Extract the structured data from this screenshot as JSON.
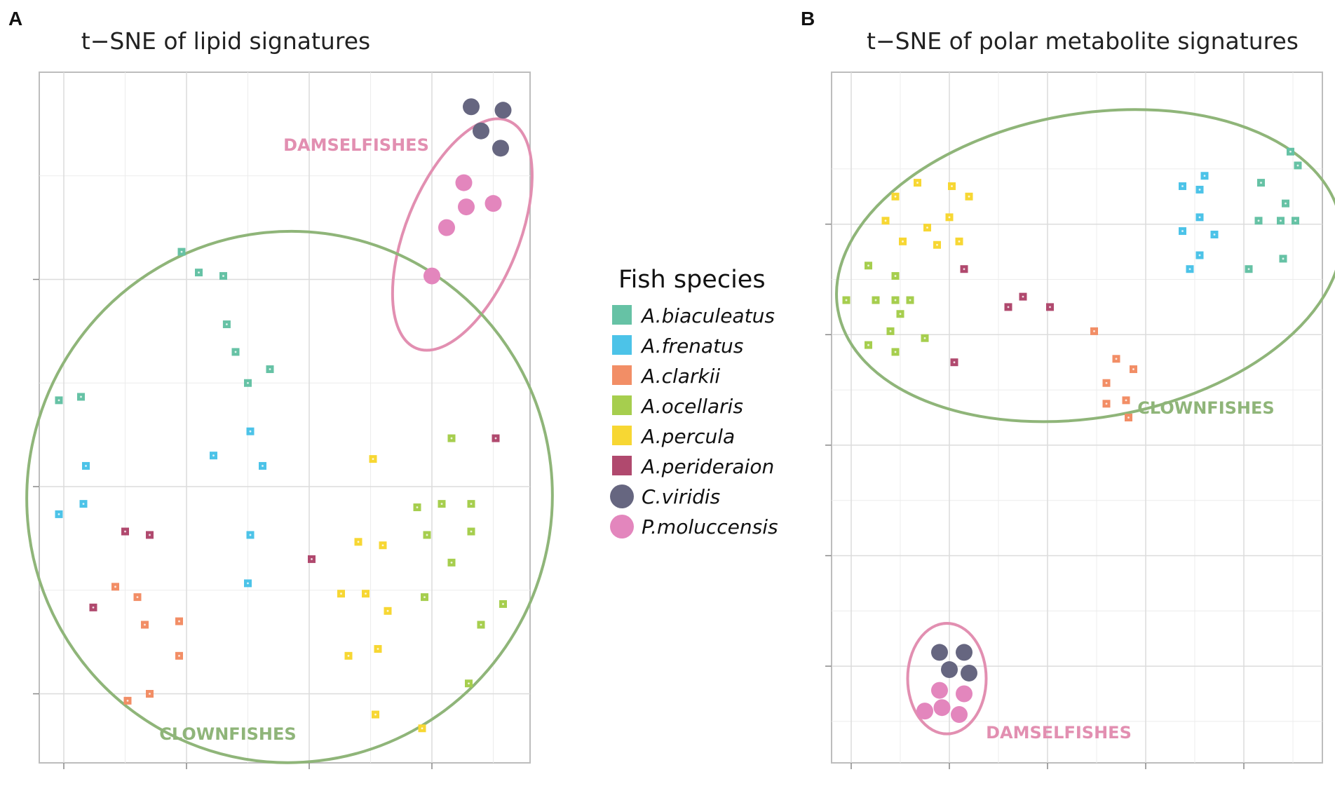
{
  "colors": {
    "A.biaculeatus": "#66C2A5",
    "A.frenatus": "#4CC3E8",
    "A.clarkii": "#F28E66",
    "A.ocellaris": "#A6CE4E",
    "A.percula": "#F7D733",
    "A.perideraion": "#B0496E",
    "C.viridis": "#666680",
    "P.moluccensis": "#E386BD",
    "clownfish_group": "#8FB579",
    "damselfish_group": "#E28FB1"
  },
  "legend": {
    "title": "Fish species",
    "items": [
      {
        "label": "A.biaculeatus",
        "shape": "square"
      },
      {
        "label": "A.frenatus",
        "shape": "square"
      },
      {
        "label": "A.clarkii",
        "shape": "square"
      },
      {
        "label": "A.ocellaris",
        "shape": "square"
      },
      {
        "label": "A.percula",
        "shape": "square"
      },
      {
        "label": "A.perideraion",
        "shape": "square"
      },
      {
        "label": "C.viridis",
        "shape": "circle"
      },
      {
        "label": "P.moluccensis",
        "shape": "circle"
      }
    ]
  },
  "chart_data": [
    {
      "type": "scatter",
      "panel": "A",
      "title": "t−SNE of lipid signatures",
      "xlim": [
        0,
        100
      ],
      "ylim": [
        0,
        100
      ],
      "xticks": [
        5,
        30,
        55,
        80
      ],
      "yticks": [
        10,
        40,
        70
      ],
      "grid": true,
      "groups": [
        {
          "label": "DAMSELFISHES",
          "color_key": "damselfish_group",
          "center": [
            86.2,
            76.5
          ],
          "rx": 25,
          "ry": 8.2,
          "angle": -68
        },
        {
          "label": "CLOWNFISHES",
          "color_key": "clownfish_group",
          "center": [
            51,
            38.5
          ],
          "rx": 53.5,
          "ry": 38.5,
          "angle": 15
        }
      ],
      "series": [
        {
          "name": "A.biaculeatus",
          "points": [
            [
              29,
              74
            ],
            [
              32.5,
              71
            ],
            [
              37.5,
              70.5
            ],
            [
              38.2,
              63.5
            ],
            [
              40,
              59.5
            ],
            [
              47,
              57
            ],
            [
              42.5,
              55
            ],
            [
              4,
              52.5
            ],
            [
              8.5,
              53
            ]
          ]
        },
        {
          "name": "A.frenatus",
          "points": [
            [
              9.5,
              43
            ],
            [
              35.5,
              44.5
            ],
            [
              45.5,
              43
            ],
            [
              43,
              48
            ],
            [
              4,
              36
            ],
            [
              9,
              37.5
            ],
            [
              43,
              33
            ],
            [
              42.5,
              26
            ]
          ]
        },
        {
          "name": "A.clarkii",
          "points": [
            [
              15.5,
              25.5
            ],
            [
              20,
              24
            ],
            [
              21.5,
              20
            ],
            [
              28.5,
              20.5
            ],
            [
              28.5,
              15.5
            ],
            [
              18,
              9
            ],
            [
              22.5,
              10
            ]
          ]
        },
        {
          "name": "A.ocellaris",
          "points": [
            [
              84,
              47
            ],
            [
              77,
              37
            ],
            [
              82,
              37.5
            ],
            [
              88,
              37.5
            ],
            [
              79,
              33
            ],
            [
              88,
              33.5
            ],
            [
              84,
              29
            ],
            [
              78.5,
              24
            ],
            [
              94.5,
              23
            ],
            [
              90,
              20
            ],
            [
              87.5,
              11.5
            ]
          ]
        },
        {
          "name": "A.percula",
          "points": [
            [
              68,
              44
            ],
            [
              65,
              32
            ],
            [
              70,
              31.5
            ],
            [
              61.5,
              24.5
            ],
            [
              66.5,
              24.5
            ],
            [
              71,
              22
            ],
            [
              63,
              15.5
            ],
            [
              69,
              16.5
            ],
            [
              68.5,
              7
            ],
            [
              78,
              5
            ]
          ]
        },
        {
          "name": "A.perideraion",
          "points": [
            [
              17.5,
              33.5
            ],
            [
              22.5,
              33
            ],
            [
              55.5,
              29.5
            ],
            [
              11,
              22.5
            ],
            [
              93,
              47
            ]
          ]
        },
        {
          "name": "C.viridis",
          "points": [
            [
              88,
              95
            ],
            [
              94.5,
              94.5
            ],
            [
              90,
              91.5
            ],
            [
              94,
              89
            ]
          ]
        },
        {
          "name": "P.moluccensis",
          "points": [
            [
              86.5,
              84
            ],
            [
              87,
              80.5
            ],
            [
              92.5,
              81
            ],
            [
              83,
              77.5
            ],
            [
              80,
              70.5
            ]
          ]
        }
      ]
    },
    {
      "type": "scatter",
      "panel": "B",
      "title": "t−SNE of polar metabolite signatures",
      "xlim": [
        0,
        100
      ],
      "ylim": [
        0,
        100
      ],
      "xticks": [
        4,
        24,
        44,
        64,
        84
      ],
      "yticks": [
        14,
        30,
        46,
        62,
        78
      ],
      "grid": true,
      "groups": [
        {
          "label": "CLOWNFISHES",
          "color_key": "clownfish_group",
          "center": [
            52.5,
            72
          ],
          "rx": 52,
          "ry": 22,
          "angle": -10
        },
        {
          "label": "DAMSELFISHES",
          "color_key": "damselfish_group",
          "center": [
            23.5,
            12.2
          ],
          "rx": 8,
          "ry": 8,
          "angle": 0
        }
      ],
      "series": [
        {
          "name": "A.biaculeatus",
          "points": [
            [
              93.5,
              88.5
            ],
            [
              95,
              86.5
            ],
            [
              87.5,
              84
            ],
            [
              92.5,
              81
            ],
            [
              87,
              78.5
            ],
            [
              91.5,
              78.5
            ],
            [
              94.5,
              78.5
            ],
            [
              92,
              73
            ],
            [
              85,
              71.5
            ]
          ]
        },
        {
          "name": "A.frenatus",
          "points": [
            [
              76,
              85
            ],
            [
              71.5,
              83.5
            ],
            [
              75,
              83
            ],
            [
              75,
              79
            ],
            [
              71.5,
              77
            ],
            [
              78,
              76.5
            ],
            [
              75,
              73.5
            ],
            [
              73,
              71.5
            ]
          ]
        },
        {
          "name": "A.clarkii",
          "points": [
            [
              53.5,
              62.5
            ],
            [
              58,
              58.5
            ],
            [
              61.5,
              57
            ],
            [
              56,
              55
            ],
            [
              56,
              52
            ],
            [
              60,
              52.5
            ],
            [
              60.5,
              50
            ]
          ]
        },
        {
          "name": "A.ocellaris",
          "points": [
            [
              7.5,
              72
            ],
            [
              13,
              70.5
            ],
            [
              3,
              67
            ],
            [
              9,
              67
            ],
            [
              13,
              67
            ],
            [
              16,
              67
            ],
            [
              14,
              65
            ],
            [
              12,
              62.5
            ],
            [
              19,
              61.5
            ],
            [
              7.5,
              60.5
            ],
            [
              13,
              59.5
            ]
          ]
        },
        {
          "name": "A.percula",
          "points": [
            [
              17.5,
              84
            ],
            [
              24.5,
              83.5
            ],
            [
              13,
              82
            ],
            [
              28,
              82
            ],
            [
              11,
              78.5
            ],
            [
              24,
              79
            ],
            [
              19.5,
              77.5
            ],
            [
              14.5,
              75.5
            ],
            [
              21.5,
              75
            ],
            [
              26,
              75.5
            ]
          ]
        },
        {
          "name": "A.perideraion",
          "points": [
            [
              27,
              71.5
            ],
            [
              39,
              67.5
            ],
            [
              36,
              66
            ],
            [
              44.5,
              66
            ],
            [
              25,
              58
            ]
          ]
        },
        {
          "name": "C.viridis",
          "points": [
            [
              22,
              16
            ],
            [
              27,
              16
            ],
            [
              24,
              13.5
            ],
            [
              28,
              13
            ]
          ]
        },
        {
          "name": "P.moluccensis",
          "points": [
            [
              22,
              10.5
            ],
            [
              27,
              10
            ],
            [
              19,
              7.5
            ],
            [
              22.5,
              8
            ],
            [
              26,
              7
            ]
          ]
        }
      ],
      "annotations": [
        {
          "text": "CLOWNFISHES",
          "color_key": "clownfish_group"
        },
        {
          "text": "DAMSELFISHES",
          "color_key": "damselfish_group"
        }
      ]
    }
  ],
  "panels": {
    "A": {
      "letter": "A"
    },
    "B": {
      "letter": "B"
    }
  }
}
